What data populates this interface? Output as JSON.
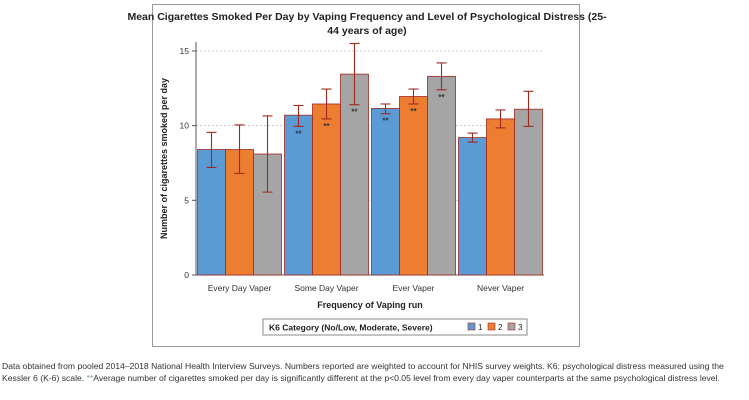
{
  "chart_data": {
    "type": "bar",
    "title": "Mean Cigarettes Smoked Per Day by Vaping Frequency and Level of Psychological Distress (25-44 years of age)",
    "title_lines": [
      "Mean Cigarettes Smoked Per Day by Vaping Frequency and Level of Psychological Distress (25-",
      "44 years of age)"
    ],
    "xlabel": "Frequency of Vaping run",
    "ylabel": "Number of cigarettes smoked per day",
    "ylim": [
      0,
      15.6
    ],
    "yticks": [
      0,
      5,
      10,
      15
    ],
    "grid": true,
    "categories": [
      "Every Day Vaper",
      "Some Day Vaper",
      "Ever Vaper",
      "Never Vaper"
    ],
    "series": [
      {
        "name": "1",
        "color": "#5b9bd5",
        "values": [
          8.4,
          10.7,
          11.15,
          9.2
        ],
        "error_low": [
          7.2,
          9.95,
          10.8,
          8.9
        ],
        "error_high": [
          9.55,
          11.35,
          11.45,
          9.5
        ],
        "annotations": [
          "",
          "**",
          "**",
          ""
        ]
      },
      {
        "name": "2",
        "color": "#ed7d31",
        "values": [
          8.4,
          11.45,
          11.95,
          10.45
        ],
        "error_low": [
          6.8,
          10.45,
          11.45,
          9.85
        ],
        "error_high": [
          10.05,
          12.45,
          12.45,
          11.05
        ],
        "annotations": [
          "",
          "**",
          "**",
          ""
        ]
      },
      {
        "name": "3",
        "color": "#a5a5a5",
        "values": [
          8.1,
          13.45,
          13.3,
          11.1
        ],
        "error_low": [
          5.55,
          11.4,
          12.4,
          9.95
        ],
        "error_high": [
          10.65,
          15.5,
          14.2,
          12.3
        ],
        "annotations": [
          "",
          "**",
          "**",
          ""
        ]
      }
    ],
    "legend": {
      "title": "K6 Category (No/Low, Moderate, Severe)",
      "position": "bottom"
    },
    "colors": {
      "bar_outline": "#a0281e",
      "error_bar": "#a0281e",
      "annotation": "#333333"
    }
  },
  "footnote": {
    "text_1": "Data obtained from pooled 2014–2018 National Health Interview Surveys. Numbers reported are weighted to account for NHIS survey weights. K6: psychological distress measured using the Kessler 6 (K-6) scale. ",
    "stars": "**",
    "text_2": "Average number of cigarettes smoked per day is significantly different at the p<0.05 level from every day vaper counterparts at the same psychological distress level."
  }
}
